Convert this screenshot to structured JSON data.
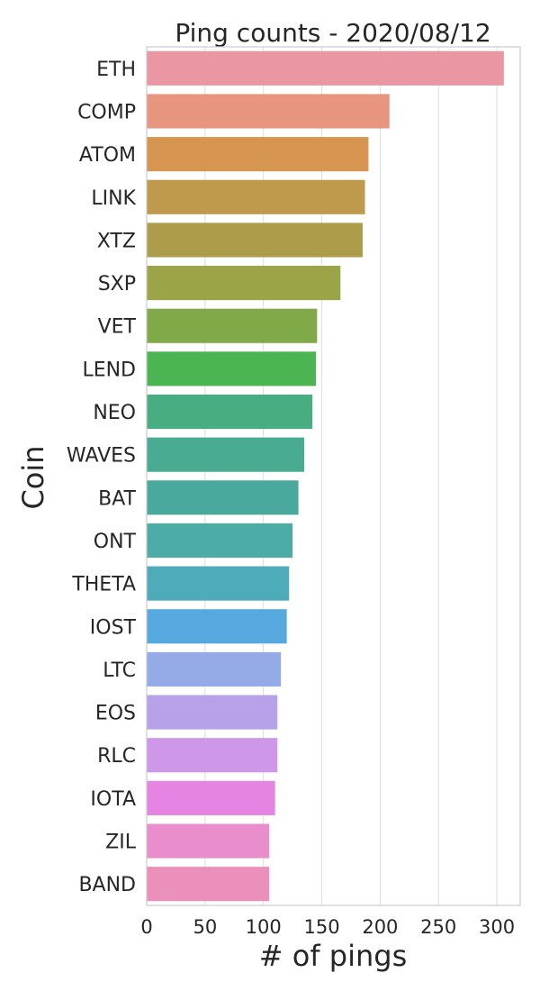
{
  "chart_data": {
    "type": "bar",
    "orientation": "horizontal",
    "title": "Ping counts - 2020/08/12",
    "xlabel": "# of pings",
    "ylabel": "Coin",
    "xlim": [
      0,
      320
    ],
    "xticks": [
      0,
      50,
      100,
      150,
      200,
      250,
      300
    ],
    "grid": true,
    "categories": [
      "ETH",
      "COMP",
      "ATOM",
      "LINK",
      "XTZ",
      "SXP",
      "VET",
      "LEND",
      "NEO",
      "WAVES",
      "BAT",
      "ONT",
      "THETA",
      "IOST",
      "LTC",
      "EOS",
      "RLC",
      "IOTA",
      "ZIL",
      "BAND"
    ],
    "values": [
      306,
      208,
      190,
      187,
      185,
      166,
      146,
      145,
      142,
      135,
      130,
      125,
      122,
      120,
      115,
      112,
      112,
      110,
      105,
      105
    ],
    "colors": [
      "#ea96a3",
      "#e8957f",
      "#d69551",
      "#bf9a4d",
      "#ad9c4a",
      "#9ba548",
      "#80a948",
      "#4ab551",
      "#48ad80",
      "#49ab91",
      "#4aa99d",
      "#4baca8",
      "#4eabba",
      "#56a9de",
      "#94abe7",
      "#b7a2ea",
      "#cf97e7",
      "#e584e3",
      "#ea8dcc",
      "#ea90ba"
    ]
  }
}
